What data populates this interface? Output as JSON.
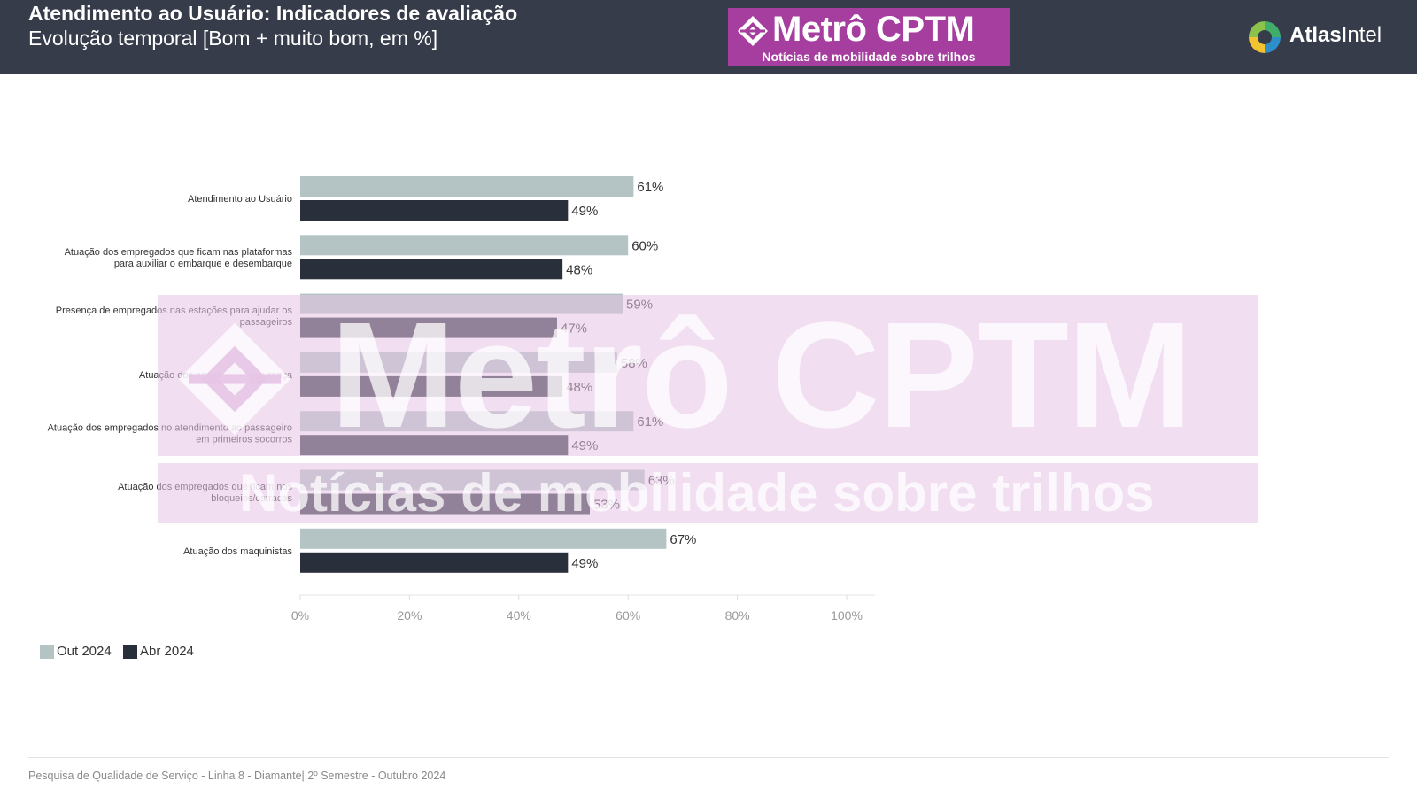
{
  "header": {
    "title": "Atendimento ao Usuário: Indicadores de avaliação",
    "subtitle": "Evolução temporal [Bom + muito bom, em %]",
    "logo_main": "Metrô CPTM",
    "logo_sub": "Notícias de mobilidade sobre trilhos",
    "atlas_bold": "Atlas",
    "atlas_regular": "Intel"
  },
  "colors": {
    "header_bg": "#363c49",
    "out_2024": "#b4c3c3",
    "abr_2024": "#2a2f3c",
    "brand_purple": "#a53e9f"
  },
  "chart_data": {
    "type": "bar",
    "orientation": "horizontal",
    "categories": [
      [
        "Atendimento ao Usuário"
      ],
      [
        "Atuação dos empregados que ficam nas plataformas",
        "para auxiliar o embarque e desembarque"
      ],
      [
        "Presença de empregados nas estações para ajudar os",
        "passageiros"
      ],
      [
        "Atuação dos agentes de segurança"
      ],
      [
        "Atuação dos empregados no atendimento ao passageiro",
        "em primeiros socorros"
      ],
      [
        "Atuação dos empregados que ficam nos",
        "bloqueios/catracas"
      ],
      [
        "Atuação dos maquinistas"
      ]
    ],
    "series": [
      {
        "name": "Out 2024",
        "values": [
          61,
          60,
          59,
          58,
          61,
          63,
          67
        ]
      },
      {
        "name": "Abr 2024",
        "values": [
          49,
          48,
          47,
          48,
          49,
          53,
          49
        ]
      }
    ],
    "value_suffix": "%",
    "xlim": [
      0,
      100
    ],
    "xticks": [
      "0%",
      "20%",
      "40%",
      "60%",
      "80%",
      "100%"
    ],
    "grid": false,
    "legend": "bottom-left"
  },
  "footer": "Pesquisa de Qualidade de Serviço - Linha 8 - Diamante| 2º Semestre - Outubro 2024"
}
